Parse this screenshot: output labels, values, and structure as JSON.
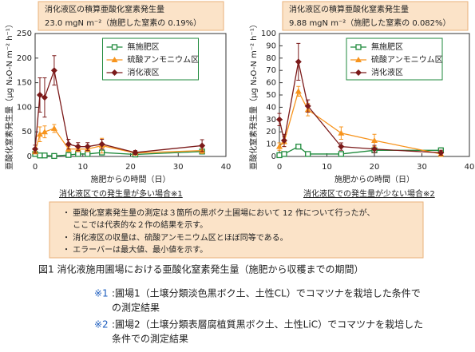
{
  "chart_data": [
    {
      "type": "line",
      "title": "消化液区の積算亜酸化窒素発生量",
      "subtitle": "23.0 mgN m⁻²（施肥した窒素の 0.19%）",
      "xlabel": "施肥からの時間（日）",
      "ylabel": "亜酸化窒素発生量（μg N₂O-N m⁻² h⁻¹）",
      "annotation": "消化液区での発生量が多い場合※1",
      "x": [
        0,
        1,
        2,
        4,
        7,
        9,
        11,
        14,
        21,
        35
      ],
      "xlim": [
        0,
        40
      ],
      "xticks": [
        0,
        10,
        20,
        30,
        40
      ],
      "ylim": [
        0,
        250
      ],
      "yticks": [
        0,
        50,
        100,
        150,
        200,
        250
      ],
      "legend": "upper center",
      "series": [
        {
          "name": "無施肥区",
          "color": "#1f8a3c",
          "marker": "square",
          "values": [
            5,
            2,
            2,
            1,
            3,
            5,
            5,
            8,
            4,
            10
          ],
          "errors": [
            2,
            1,
            1,
            1,
            2,
            2,
            2,
            3,
            2,
            4
          ]
        },
        {
          "name": "硫酸アンモニウム区",
          "color": "#f7941d",
          "marker": "triangle",
          "values": [
            10,
            45,
            50,
            57,
            15,
            15,
            15,
            22,
            7,
            12
          ],
          "errors": [
            5,
            15,
            12,
            8,
            5,
            5,
            5,
            15,
            4,
            6
          ]
        },
        {
          "name": "消化液区",
          "color": "#7b1a1a",
          "marker": "diamond",
          "values": [
            15,
            125,
            120,
            175,
            25,
            20,
            20,
            25,
            8,
            22
          ],
          "errors": [
            8,
            35,
            40,
            30,
            10,
            8,
            8,
            10,
            4,
            12
          ]
        }
      ]
    },
    {
      "type": "line",
      "title": "消化液区の積算亜酸化窒素発生量",
      "subtitle": "9.88 mgN m⁻²（施肥した窒素の 0.082%）",
      "xlabel": "施肥からの時間（日）",
      "ylabel": "亜酸化窒素発生量（μg N₂O-N m⁻² h⁻¹）",
      "annotation": "消化液区での発生量が少ない場合※2",
      "x": [
        0,
        1,
        4,
        6,
        13,
        20,
        34
      ],
      "xlim": [
        0,
        40
      ],
      "xticks": [
        0,
        10,
        20,
        30,
        40
      ],
      "ylim": [
        0,
        100
      ],
      "yticks": [
        0,
        10,
        20,
        30,
        40,
        50,
        60,
        70,
        80,
        90,
        100
      ],
      "legend": "upper center",
      "series": [
        {
          "name": "無施肥区",
          "color": "#1f8a3c",
          "marker": "square",
          "values": [
            1,
            2,
            8,
            2,
            2,
            5,
            5
          ],
          "errors": [
            1,
            1,
            1,
            1,
            1,
            2,
            2
          ]
        },
        {
          "name": "硫酸アンモニウム区",
          "color": "#f7941d",
          "marker": "triangle",
          "values": [
            8,
            12,
            53,
            38,
            19,
            13,
            2
          ],
          "errors": [
            3,
            4,
            4,
            5,
            5,
            5,
            2
          ]
        },
        {
          "name": "消化液区",
          "color": "#7b1a1a",
          "marker": "diamond",
          "values": [
            30,
            13,
            77,
            41,
            8,
            6,
            3
          ],
          "errors": [
            5,
            5,
            15,
            5,
            3,
            3,
            2
          ]
        }
      ]
    }
  ],
  "notes": [
    "・ 亜酸化窒素発生量の測定は３箇所の黒ボク土圃場において 12 作について行ったが、",
    "　 ここでは代表的な２作の結果を示す。",
    "・ 消化液区の収量は、硫酸アンモニウム区とほぼ同等である。",
    "・ エラーバーは最大値、最小値を示す。"
  ],
  "caption": "図1  消化液施用圃場における亜酸化窒素発生量（施肥から収穫までの期間）",
  "footnotes": [
    {
      "mark": "※1",
      "lines": [
        ":圃場1（土壌分類淡色黒ボク土、土性CL）でコマツナを栽培した条件で",
        "の測定結果"
      ]
    },
    {
      "mark": "※2",
      "lines": [
        ":圃場2（土壌分類表層腐植質黒ボク土、土性LiC）でコマツナを栽培した",
        "条件での測定結果"
      ]
    }
  ]
}
